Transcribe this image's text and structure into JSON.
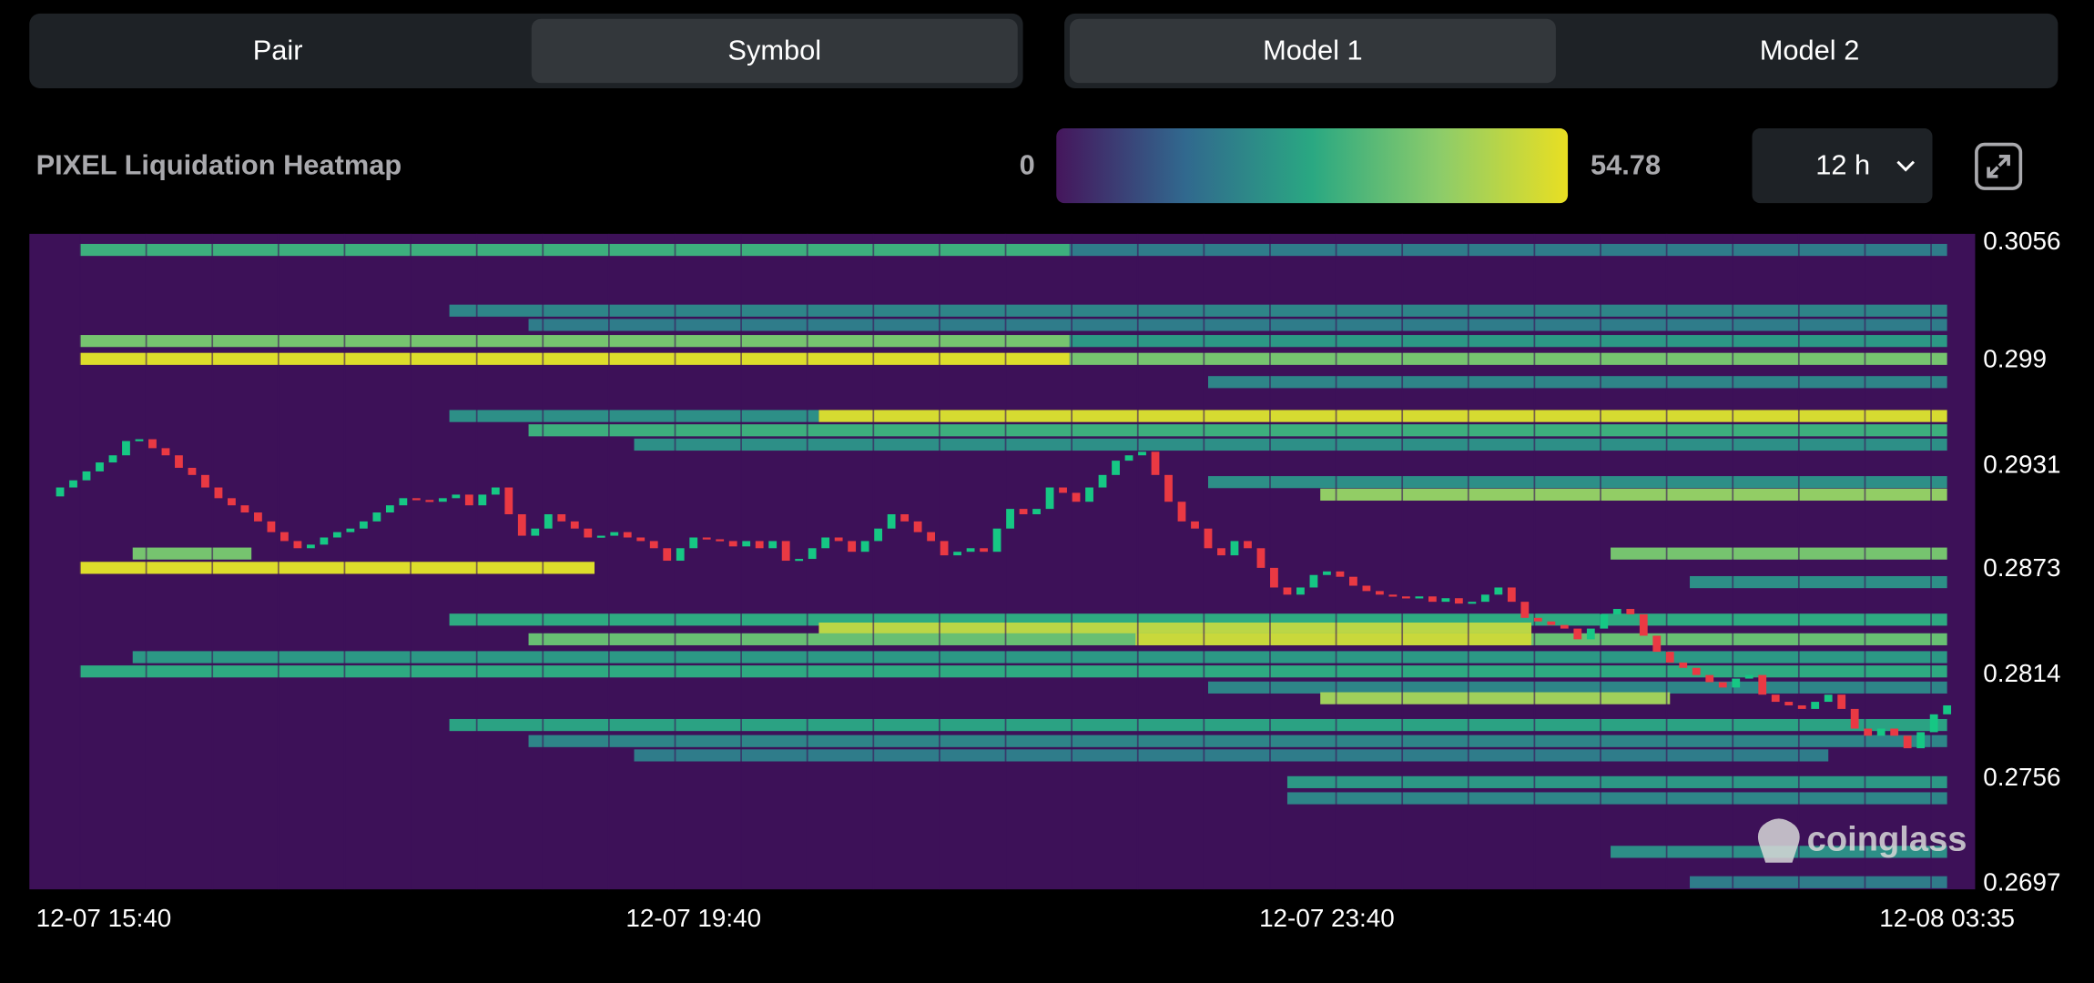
{
  "tabs": [
    {
      "options": [
        "Pair",
        "Symbol"
      ],
      "active": 1
    },
    {
      "options": [
        "Model 1",
        "Model 2"
      ],
      "active": 0
    }
  ],
  "header": {
    "title": "PIXEL Liquidation Heatmap",
    "interval": "12 h"
  },
  "watermark": "coinglass",
  "chart_data": {
    "type": "heatmap",
    "zlim": [
      0,
      54.78
    ],
    "colorscale": [
      "#45165c",
      "#31688e",
      "#2aa882",
      "#8ccc6a",
      "#e9df22"
    ],
    "ylim": [
      0.2694,
      0.3061
    ],
    "yticks": [
      0.3056,
      0.299,
      0.2931,
      0.2873,
      0.2814,
      0.2756,
      0.2697
    ],
    "grid": false,
    "categories": [
      "12-07 15:40",
      null,
      null,
      null,
      null,
      null,
      null,
      null,
      null,
      null,
      null,
      null,
      null,
      null,
      null,
      null,
      null,
      null,
      null,
      null,
      null,
      null,
      null,
      null,
      null,
      null,
      null,
      null,
      null,
      null,
      null,
      null,
      null,
      null,
      null,
      null,
      null,
      null,
      null,
      null,
      null,
      null,
      null,
      null,
      null,
      null,
      null,
      null,
      "12-07 19:40",
      null,
      null,
      null,
      null,
      null,
      null,
      null,
      null,
      null,
      null,
      null,
      null,
      null,
      null,
      null,
      null,
      null,
      null,
      null,
      null,
      null,
      null,
      null,
      null,
      null,
      null,
      null,
      null,
      null,
      null,
      null,
      null,
      null,
      null,
      null,
      null,
      null,
      null,
      null,
      null,
      null,
      null,
      null,
      null,
      null,
      null,
      null,
      "12-07 23:40",
      null,
      null,
      null,
      null,
      null,
      null,
      null,
      null,
      null,
      null,
      null,
      null,
      null,
      null,
      null,
      null,
      null,
      null,
      null,
      null,
      null,
      null,
      null,
      null,
      null,
      null,
      null,
      null,
      null,
      null,
      null,
      null,
      null,
      null,
      null,
      null,
      null,
      null,
      null,
      null,
      null,
      null,
      null,
      null,
      null,
      null,
      "12-08 03:35"
    ],
    "bands": [
      {
        "price": 0.3052,
        "start": 1.5,
        "end": 76.5,
        "value": 30
      },
      {
        "price": 0.3052,
        "start": 76.5,
        "end": 143,
        "value": 18
      },
      {
        "price": 0.3018,
        "start": 29.5,
        "end": 143,
        "value": 20
      },
      {
        "price": 0.301,
        "start": 35.5,
        "end": 143,
        "value": 18
      },
      {
        "price": 0.3001,
        "start": 1.5,
        "end": 76.5,
        "value": 38
      },
      {
        "price": 0.3001,
        "start": 76.5,
        "end": 143,
        "value": 24
      },
      {
        "price": 0.2991,
        "start": 1.5,
        "end": 76.5,
        "value": 53
      },
      {
        "price": 0.2991,
        "start": 76.5,
        "end": 143,
        "value": 38
      },
      {
        "price": 0.2978,
        "start": 87,
        "end": 143,
        "value": 20
      },
      {
        "price": 0.2959,
        "start": 29.5,
        "end": 57.5,
        "value": 22
      },
      {
        "price": 0.2959,
        "start": 57.5,
        "end": 143,
        "value": 52
      },
      {
        "price": 0.2951,
        "start": 35.5,
        "end": 143,
        "value": 30
      },
      {
        "price": 0.2943,
        "start": 43.5,
        "end": 143,
        "value": 22
      },
      {
        "price": 0.2922,
        "start": 87,
        "end": 143,
        "value": 22
      },
      {
        "price": 0.2915,
        "start": 95.5,
        "end": 143,
        "value": 42
      },
      {
        "price": 0.2882,
        "start": 5.5,
        "end": 14.5,
        "value": 38
      },
      {
        "price": 0.2882,
        "start": 117.5,
        "end": 143,
        "value": 38
      },
      {
        "price": 0.2874,
        "start": 1.5,
        "end": 40.5,
        "value": 53
      },
      {
        "price": 0.2866,
        "start": 123.5,
        "end": 143,
        "value": 22
      },
      {
        "price": 0.2845,
        "start": 29.5,
        "end": 143,
        "value": 28
      },
      {
        "price": 0.284,
        "start": 57.5,
        "end": 111.5,
        "value": 48
      },
      {
        "price": 0.2834,
        "start": 35.5,
        "end": 143,
        "value": 36
      },
      {
        "price": 0.2834,
        "start": 81.5,
        "end": 111.5,
        "value": 50
      },
      {
        "price": 0.2824,
        "start": 5.5,
        "end": 143,
        "value": 24
      },
      {
        "price": 0.2816,
        "start": 1.5,
        "end": 143,
        "value": 28
      },
      {
        "price": 0.2807,
        "start": 87,
        "end": 143,
        "value": 20
      },
      {
        "price": 0.2801,
        "start": 95.5,
        "end": 122,
        "value": 44
      },
      {
        "price": 0.2786,
        "start": 29.5,
        "end": 143,
        "value": 26
      },
      {
        "price": 0.2777,
        "start": 35.5,
        "end": 143,
        "value": 20
      },
      {
        "price": 0.2769,
        "start": 43.5,
        "end": 134,
        "value": 18
      },
      {
        "price": 0.2754,
        "start": 93,
        "end": 143,
        "value": 24
      },
      {
        "price": 0.2745,
        "start": 93,
        "end": 143,
        "value": 20
      },
      {
        "price": 0.2715,
        "start": 117.5,
        "end": 143,
        "value": 22
      },
      {
        "price": 0.2698,
        "start": 123.5,
        "end": 143,
        "value": 18
      }
    ],
    "overlay": {
      "type": "candlestick",
      "up_color": "#16c784",
      "down_color": "#ea3943",
      "open": [
        0.2914,
        0.2919,
        0.2923,
        0.2928,
        0.2933,
        0.2937,
        0.2945,
        0.2946,
        0.2941,
        0.2937,
        0.293,
        0.2926,
        0.2919,
        0.2913,
        0.2909,
        0.2905,
        0.29,
        0.2894,
        0.2889,
        0.2885,
        0.2887,
        0.2891,
        0.2894,
        0.2896,
        0.29,
        0.2905,
        0.2909,
        0.2913,
        0.2912,
        0.2911,
        0.2913,
        0.2915,
        0.2909,
        0.2915,
        0.2919,
        0.2904,
        0.2892,
        0.2896,
        0.2904,
        0.29,
        0.2896,
        0.2891,
        0.2892,
        0.2894,
        0.2891,
        0.2889,
        0.2885,
        0.2878,
        0.2885,
        0.2891,
        0.289,
        0.2889,
        0.2886,
        0.2889,
        0.2885,
        0.2889,
        0.2878,
        0.2879,
        0.2885,
        0.2891,
        0.2889,
        0.2883,
        0.2889,
        0.2896,
        0.2904,
        0.29,
        0.2894,
        0.2889,
        0.2881,
        0.2883,
        0.2885,
        0.2883,
        0.2896,
        0.2907,
        0.2904,
        0.2907,
        0.2919,
        0.2916,
        0.2911,
        0.2919,
        0.2926,
        0.2934,
        0.2937,
        0.2939,
        0.2926,
        0.2911,
        0.29,
        0.2896,
        0.2885,
        0.2881,
        0.2889,
        0.2885,
        0.2874,
        0.2863,
        0.2859,
        0.2863,
        0.287,
        0.2872,
        0.2869,
        0.2864,
        0.2861,
        0.2859,
        0.2858,
        0.2857,
        0.2858,
        0.2855,
        0.2857,
        0.2854,
        0.2855,
        0.2859,
        0.2863,
        0.2855,
        0.2846,
        0.2844,
        0.2842,
        0.284,
        0.2834,
        0.284,
        0.2848,
        0.2851,
        0.2848,
        0.2836,
        0.2827,
        0.2821,
        0.2818,
        0.2814,
        0.281,
        0.2807,
        0.2812,
        0.2814,
        0.2803,
        0.2799,
        0.2797,
        0.2795,
        0.2799,
        0.2803,
        0.2795,
        0.2784,
        0.278,
        0.2784,
        0.278,
        0.2773,
        0.2782,
        0.2792
      ],
      "close": [
        0.2919,
        0.2923,
        0.2928,
        0.2933,
        0.2937,
        0.2945,
        0.2946,
        0.2941,
        0.2937,
        0.293,
        0.2926,
        0.2919,
        0.2913,
        0.2909,
        0.2905,
        0.29,
        0.2894,
        0.2889,
        0.2885,
        0.2887,
        0.2891,
        0.2894,
        0.2896,
        0.29,
        0.2905,
        0.2909,
        0.2913,
        0.2912,
        0.2911,
        0.2913,
        0.2915,
        0.2909,
        0.2915,
        0.2919,
        0.2904,
        0.2892,
        0.2896,
        0.2904,
        0.29,
        0.2896,
        0.2891,
        0.2892,
        0.2894,
        0.2891,
        0.2889,
        0.2885,
        0.2878,
        0.2885,
        0.2891,
        0.289,
        0.2889,
        0.2886,
        0.2889,
        0.2885,
        0.2889,
        0.2878,
        0.2879,
        0.2885,
        0.2891,
        0.2889,
        0.2883,
        0.2889,
        0.2896,
        0.2904,
        0.29,
        0.2894,
        0.2889,
        0.2881,
        0.2883,
        0.2885,
        0.2883,
        0.2896,
        0.2907,
        0.2904,
        0.2907,
        0.2919,
        0.2916,
        0.2911,
        0.2919,
        0.2926,
        0.2934,
        0.2937,
        0.2939,
        0.2926,
        0.2911,
        0.29,
        0.2896,
        0.2885,
        0.2881,
        0.2889,
        0.2885,
        0.2874,
        0.2863,
        0.2859,
        0.2863,
        0.287,
        0.2872,
        0.2869,
        0.2864,
        0.2861,
        0.2859,
        0.2858,
        0.2857,
        0.2858,
        0.2855,
        0.2857,
        0.2854,
        0.2855,
        0.2859,
        0.2863,
        0.2855,
        0.2846,
        0.2844,
        0.2842,
        0.284,
        0.2834,
        0.284,
        0.2848,
        0.2851,
        0.2848,
        0.2836,
        0.2827,
        0.2821,
        0.2818,
        0.2814,
        0.281,
        0.2807,
        0.2812,
        0.2814,
        0.2803,
        0.2799,
        0.2797,
        0.2795,
        0.2799,
        0.2803,
        0.2795,
        0.2784,
        0.278,
        0.2784,
        0.278,
        0.2773,
        0.2782,
        0.2792,
        0.2797
      ]
    }
  }
}
